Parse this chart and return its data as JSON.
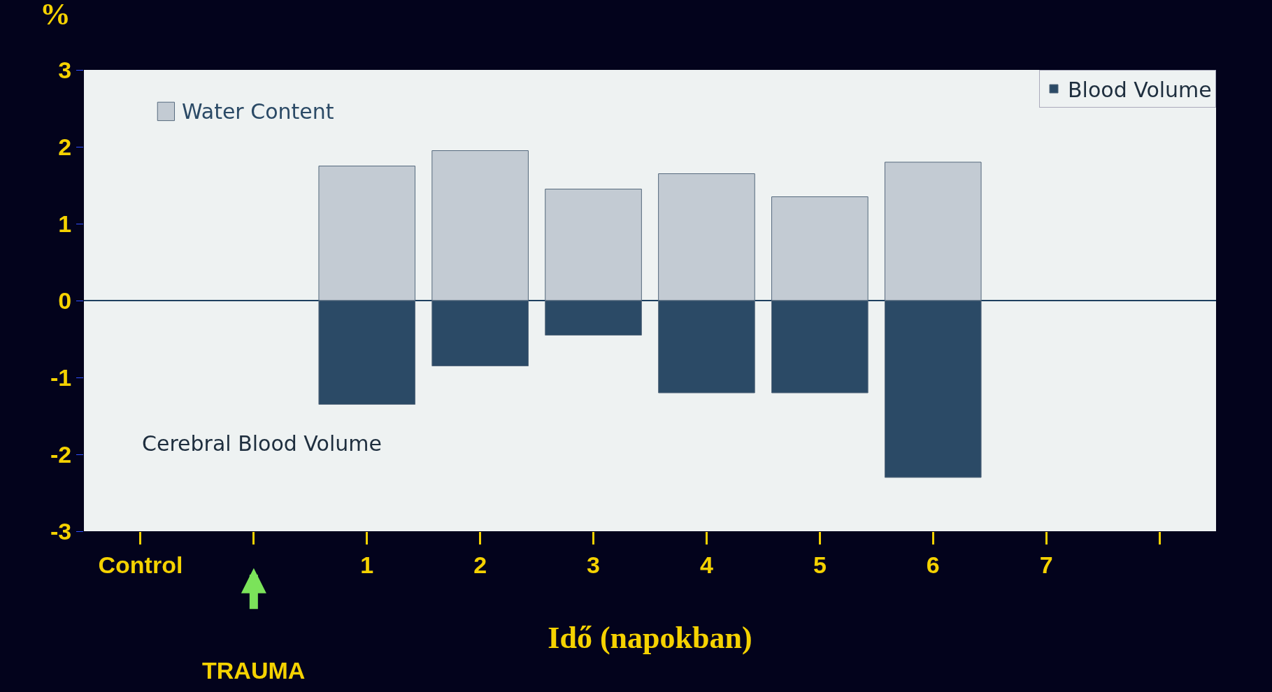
{
  "chart_data": {
    "type": "bar",
    "stacked": true,
    "xlabel": "Idő (napokban)",
    "ylabel": "%",
    "categories": [
      "Control",
      null,
      "1",
      "2",
      "3",
      "4",
      "5",
      "6",
      "7",
      null
    ],
    "series": [
      {
        "name": "Water Content",
        "color": "#c3cbd3",
        "values": [
          null,
          null,
          1.75,
          1.95,
          1.45,
          1.65,
          1.35,
          1.8,
          null,
          null
        ]
      },
      {
        "name": "Blood Volume",
        "color": "#2b4a66",
        "values": [
          null,
          null,
          -1.35,
          -0.85,
          -0.45,
          -1.2,
          -1.2,
          -2.3,
          null,
          null
        ]
      }
    ],
    "annotations": [
      "Cerebral Blood Volume",
      "TRAUMA"
    ],
    "ylim": [
      -3,
      3
    ],
    "yticks": [
      -3,
      -2,
      -1,
      0,
      1,
      2,
      3
    ],
    "legend": "top right",
    "grid": false
  }
}
